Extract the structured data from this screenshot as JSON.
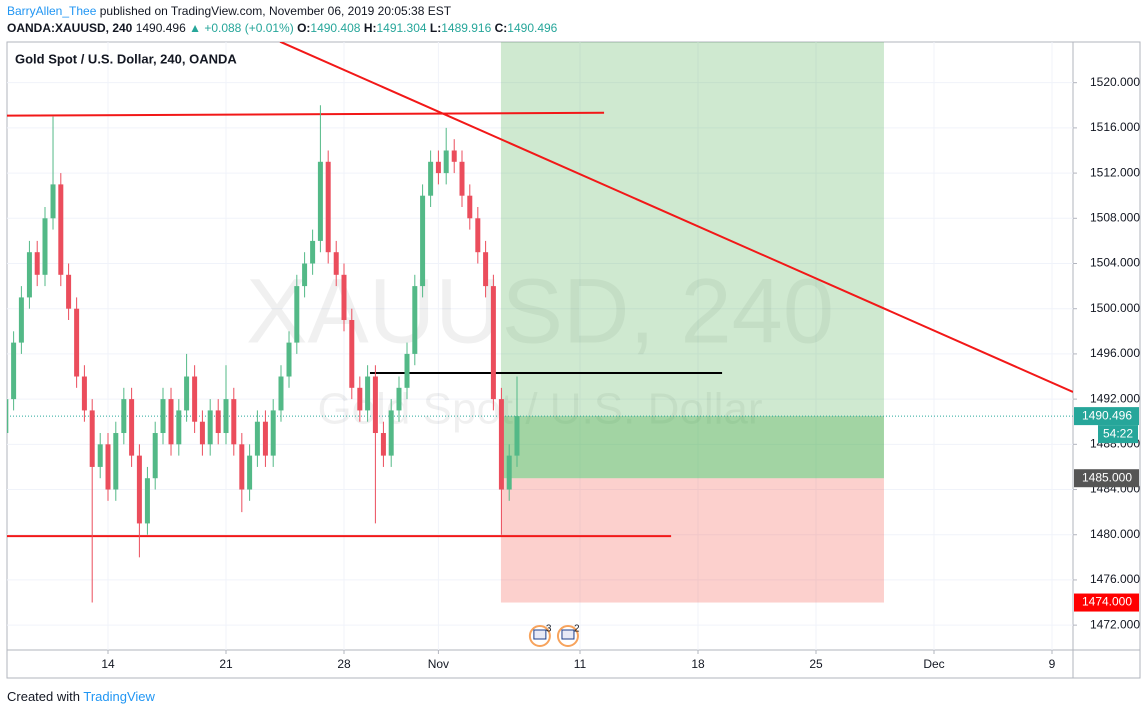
{
  "header": {
    "author": "BarryAllen_Thee",
    "published": "published on TradingView.com, November 06, 2019 20:05:38 EST",
    "symbol": "OANDA:XAUUSD, 240",
    "last": "1490.496",
    "change": "▲ +0.088 (+0.01%)",
    "o_label": "O:",
    "o": "1490.408",
    "h_label": "H:",
    "h": "1491.304",
    "l_label": "L:",
    "l": "1489.916",
    "c_label": "C:",
    "c": "1490.496"
  },
  "footer": {
    "text": "Created with",
    "brand": "TradingView"
  },
  "chart_data": {
    "type": "candlestick",
    "title": "Gold Spot / U.S. Dollar, 240, OANDA",
    "watermark": "XAUUSD, 240",
    "watermark_subtitle": "Gold Spot / U.S. Dollar",
    "up_color": "#53b987",
    "down_color": "#eb4d5c",
    "grid": true,
    "x": [
      -4.33,
      -4,
      -3.67,
      -3.33,
      -3,
      -2.67,
      -2.33,
      -2,
      -1.67,
      -1.33,
      -1,
      -0.67,
      -0.33,
      0,
      0.33,
      0.67,
      1,
      1.33,
      1.67,
      2,
      2.33,
      2.67,
      3,
      3.33,
      3.67,
      4,
      4.33,
      4.67,
      5,
      5.33,
      5.67,
      6,
      6.33,
      6.67,
      7,
      7.33,
      7.67,
      8,
      8.33,
      8.67,
      9,
      9.33,
      9.67,
      10,
      10.33,
      10.67,
      11,
      11.33,
      11.67,
      12,
      12.33,
      12.67,
      13,
      13.33,
      13.67,
      14,
      14.33,
      14.67,
      15,
      15.33,
      15.67,
      16,
      16.33,
      16.67,
      17,
      17.33
    ],
    "open": [
      1489,
      1492,
      1497,
      1501,
      1505,
      1503,
      1508,
      1511,
      1503,
      1500,
      1494,
      1491,
      1486,
      1488,
      1484,
      1489,
      1492,
      1487,
      1481,
      1485,
      1489,
      1492,
      1488,
      1491,
      1494,
      1490,
      1488,
      1491,
      1489,
      1492,
      1488,
      1484,
      1487,
      1490,
      1487,
      1491,
      1494,
      1497,
      1502,
      1504,
      1506,
      1513,
      1505,
      1503,
      1499,
      1493,
      1491,
      1494,
      1489,
      1487,
      1491,
      1493,
      1496,
      1502,
      1510,
      1513,
      1512,
      1514,
      1513,
      1510,
      1508,
      1505,
      1502,
      1492,
      1484,
      1487
    ],
    "high": [
      1493,
      1498,
      1502,
      1506,
      1506,
      1509,
      1517,
      1512,
      1504,
      1501,
      1495,
      1492,
      1489,
      1489,
      1490,
      1493,
      1493,
      1488,
      1486,
      1490,
      1493,
      1493,
      1492,
      1496,
      1495,
      1491,
      1492,
      1492,
      1495,
      1493,
      1489,
      1488,
      1491,
      1491,
      1492,
      1495,
      1498,
      1503,
      1505,
      1507,
      1518,
      1514,
      1506,
      1504,
      1500,
      1494,
      1495,
      1495,
      1490,
      1492,
      1494,
      1497,
      1503,
      1511,
      1514,
      1514,
      1516,
      1515,
      1514,
      1511,
      1509,
      1506,
      1503,
      1493,
      1488,
      1494
    ],
    "low": [
      1488,
      1491,
      1496,
      1500,
      1502,
      1502,
      1507,
      1502,
      1499,
      1493,
      1490,
      1474,
      1485,
      1483,
      1483,
      1488,
      1486,
      1478,
      1480,
      1484,
      1488,
      1487,
      1487,
      1490,
      1489,
      1487,
      1487,
      1488,
      1488,
      1487,
      1482,
      1483,
      1486,
      1486,
      1486,
      1490,
      1493,
      1496,
      1501,
      1503,
      1505,
      1504,
      1502,
      1498,
      1492,
      1490,
      1490,
      1481,
      1486,
      1486,
      1490,
      1492,
      1495,
      1501,
      1509,
      1511,
      1511,
      1512,
      1509,
      1507,
      1504,
      1501,
      1491,
      1480,
      1483,
      1486
    ],
    "close": [
      1492,
      1497,
      1501,
      1505,
      1503,
      1508,
      1511,
      1503,
      1500,
      1494,
      1491,
      1486,
      1488,
      1484,
      1489,
      1492,
      1487,
      1481,
      1485,
      1489,
      1492,
      1488,
      1491,
      1494,
      1490,
      1488,
      1491,
      1489,
      1492,
      1488,
      1484,
      1487,
      1490,
      1487,
      1491,
      1494,
      1497,
      1502,
      1504,
      1506,
      1513,
      1505,
      1503,
      1499,
      1493,
      1491,
      1494,
      1489,
      1487,
      1491,
      1493,
      1496,
      1502,
      1510,
      1513,
      1512,
      1514,
      1513,
      1510,
      1508,
      1505,
      1502,
      1492,
      1484,
      1487,
      1490.496
    ],
    "xlim": [
      -4.28,
      40.89
    ],
    "xticks": [
      {
        "value": 0,
        "label": "14"
      },
      {
        "value": 5,
        "label": "21"
      },
      {
        "value": 10,
        "label": "28"
      },
      {
        "value": 14,
        "label": "Nov"
      },
      {
        "value": 20,
        "label": "11"
      },
      {
        "value": 25,
        "label": "18"
      },
      {
        "value": 30,
        "label": "25"
      },
      {
        "value": 35,
        "label": "Dec"
      },
      {
        "value": 40,
        "label": "9"
      }
    ],
    "ylim": [
      1469.8,
      1523.6
    ],
    "yticks": [
      {
        "value": 1472,
        "label": "1472.000"
      },
      {
        "value": 1476,
        "label": "1476.000"
      },
      {
        "value": 1480,
        "label": "1480.000"
      },
      {
        "value": 1484,
        "label": "1484.000"
      },
      {
        "value": 1488,
        "label": "1488.000"
      },
      {
        "value": 1492,
        "label": "1492.000"
      },
      {
        "value": 1496,
        "label": "1496.000"
      },
      {
        "value": 1500,
        "label": "1500.000"
      },
      {
        "value": 1504,
        "label": "1504.000"
      },
      {
        "value": 1508,
        "label": "1508.000"
      },
      {
        "value": 1512,
        "label": "1512.000"
      },
      {
        "value": 1516,
        "label": "1516.000"
      },
      {
        "value": 1520,
        "label": "1520.000"
      }
    ],
    "position": {
      "x": [
        16.65,
        32.88
      ],
      "target": 1524,
      "entry": 1485,
      "stop": 1474,
      "current": 1490.496
    },
    "drawings": [
      {
        "x": [
          -4.28,
          21.02
        ],
        "y": [
          1517.08,
          1517.34
        ],
        "color": "#f21818"
      },
      {
        "x": [
          -4.28,
          23.86
        ],
        "y": [
          1479.88,
          1479.88
        ],
        "color": "#f21818"
      },
      {
        "x": [
          11.1,
          26.02
        ],
        "y": [
          1494.31,
          1494.31
        ],
        "color": "#000000"
      },
      {
        "x": [
          7.29,
          40.89
        ],
        "y": [
          1523.63,
          1492.63
        ],
        "color": "#f21818"
      }
    ],
    "price_labels": [
      {
        "value": 1490.496,
        "label": "1490.496",
        "color": "#26a69a"
      },
      {
        "value": 1485,
        "label": "1485.000",
        "color": "#555555"
      },
      {
        "value": 1474,
        "label": "1474.000",
        "color": "#ff0000"
      }
    ],
    "countdown": "54:22",
    "events": [
      {
        "x": 18.3,
        "count": 3
      },
      {
        "x": 19.49,
        "count": 2
      }
    ]
  }
}
